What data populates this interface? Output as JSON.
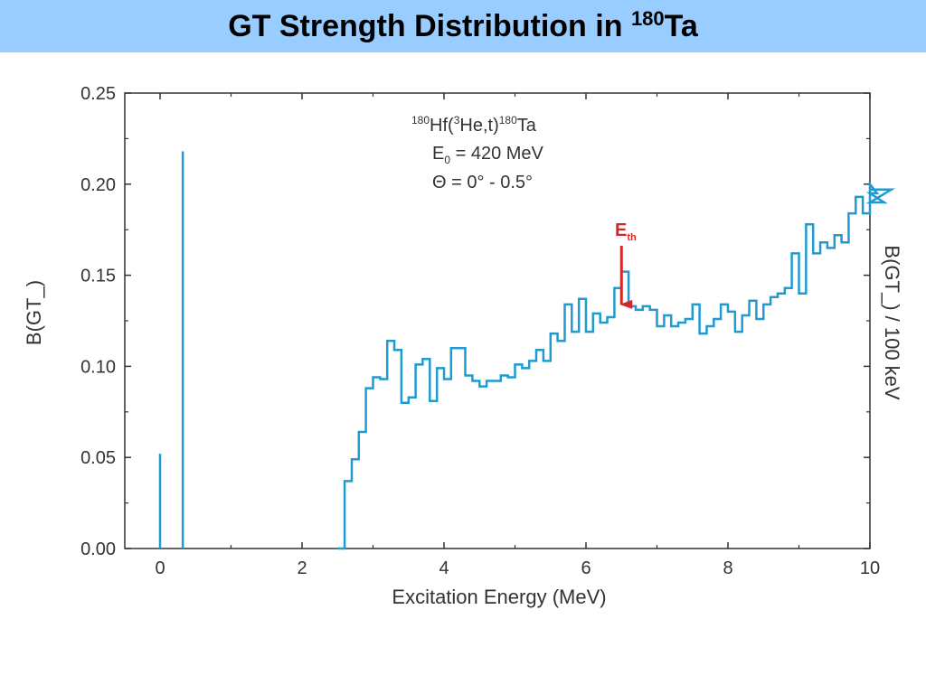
{
  "slide": {
    "title_main": "GT Strength Distribution in ",
    "title_sup": "180",
    "title_end": "Ta"
  },
  "colors": {
    "title_background": "#99ccff",
    "series": "#1f9bd1",
    "arrow": "#d62728"
  },
  "chart_data": {
    "type": "line",
    "title": "",
    "xlabel": "Excitation Energy (MeV)",
    "ylabel": "B(GT_)",
    "ylabel_right": "B(GT_) / 100 keV",
    "xlim": [
      -0.5,
      10
    ],
    "ylim": [
      0,
      0.25
    ],
    "x_ticks": [
      0,
      2,
      4,
      6,
      8,
      10
    ],
    "x_tick_labels": [
      "0",
      "2",
      "4",
      "6",
      "8",
      "10"
    ],
    "y_ticks": [
      0,
      0.05,
      0.1,
      0.15,
      0.2,
      0.25
    ],
    "y_tick_labels": [
      "0.00",
      "0.05",
      "0.10",
      "0.15",
      "0.20",
      "0.25"
    ],
    "grid": false,
    "discrete_lines": [
      {
        "x": 0.0,
        "y": 0.052
      },
      {
        "x": 0.32,
        "y": 0.218
      }
    ],
    "histogram": {
      "x_start": 2.5,
      "bin_width": 0.1,
      "values": [
        0.0,
        0.037,
        0.049,
        0.064,
        0.088,
        0.094,
        0.093,
        0.114,
        0.109,
        0.08,
        0.083,
        0.101,
        0.104,
        0.081,
        0.099,
        0.093,
        0.11,
        0.11,
        0.095,
        0.092,
        0.089,
        0.092,
        0.092,
        0.095,
        0.094,
        0.101,
        0.099,
        0.103,
        0.109,
        0.103,
        0.118,
        0.114,
        0.134,
        0.119,
        0.137,
        0.119,
        0.129,
        0.124,
        0.127,
        0.143,
        0.152,
        0.133,
        0.131,
        0.133,
        0.131,
        0.122,
        0.128,
        0.122,
        0.124,
        0.126,
        0.134,
        0.118,
        0.122,
        0.126,
        0.134,
        0.13,
        0.119,
        0.128,
        0.136,
        0.126,
        0.134,
        0.138,
        0.14,
        0.143,
        0.162,
        0.14,
        0.178,
        0.162,
        0.168,
        0.165,
        0.172,
        0.168,
        0.184,
        0.193,
        0.184,
        0.2,
        0.195,
        0.19,
        0.197
      ]
    },
    "annotation": {
      "line1_sup_a": "180",
      "line1_a": "Hf(",
      "line1_sup_b": "3",
      "line1_b": "He,t)",
      "line1_sup_c": "180",
      "line1_c": "Ta",
      "line2_main": "E",
      "line2_sub": "0",
      "line2_rest": " = 420 MeV",
      "line3": "Θ = 0° - 0.5°"
    },
    "arrow_label": {
      "main": "E",
      "sub": "th",
      "x": 6.5,
      "y_tip": 0.133
    }
  }
}
